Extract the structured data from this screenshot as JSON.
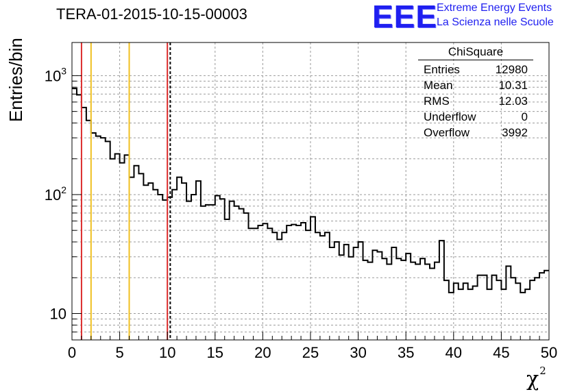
{
  "chart_data": {
    "type": "histogram",
    "title": "TERA-01-2015-10-15-00003",
    "xlabel": "χ",
    "xlabel_sup": "2",
    "ylabel": "Entries/bin",
    "xlim": [
      0,
      50
    ],
    "ylim": [
      6,
      1900
    ],
    "yscale": "log",
    "grid": true,
    "bin_width": 0.5,
    "x_ticks": [
      0,
      5,
      10,
      15,
      20,
      25,
      30,
      35,
      40,
      45,
      50
    ],
    "y_ticks": [
      {
        "value": 10,
        "base": "10",
        "exp": ""
      },
      {
        "value": 100,
        "base": "10",
        "exp": "2"
      },
      {
        "value": 1000,
        "base": "10",
        "exp": "3"
      }
    ],
    "bin_contents": [
      780,
      690,
      540,
      420,
      330,
      310,
      300,
      280,
      200,
      220,
      185,
      215,
      140,
      175,
      150,
      120,
      125,
      110,
      100,
      90,
      95,
      110,
      140,
      125,
      88,
      100,
      130,
      80,
      82,
      82,
      98,
      92,
      62,
      88,
      80,
      76,
      70,
      52,
      52,
      55,
      57,
      52,
      48,
      42,
      48,
      55,
      56,
      55,
      58,
      50,
      65,
      48,
      45,
      48,
      36,
      40,
      31,
      38,
      30,
      36,
      40,
      28,
      27,
      34,
      33,
      29,
      26,
      36,
      29,
      28,
      32,
      27,
      26,
      29,
      26,
      24,
      27,
      41,
      19,
      15,
      18,
      16,
      18,
      16,
      17,
      21,
      21,
      16,
      21,
      19,
      16,
      25,
      20,
      18,
      15,
      16,
      19,
      20,
      22,
      23
    ],
    "vertical_lines": [
      {
        "x": 1,
        "color": "#dc2a2a",
        "style": "solid"
      },
      {
        "x": 2,
        "color": "#f0c020",
        "style": "solid"
      },
      {
        "x": 6,
        "color": "#f0c020",
        "style": "solid"
      },
      {
        "x": 10,
        "color": "#dc2a2a",
        "style": "solid"
      },
      {
        "x": 10.3,
        "color": "#000000",
        "style": "dashed"
      }
    ],
    "stats": {
      "name": "ChiSquare",
      "rows": [
        {
          "label": "Entries",
          "value": "12980"
        },
        {
          "label": "Mean",
          "value": "10.31"
        },
        {
          "label": "RMS",
          "value": "12.03"
        },
        {
          "label": "Underflow",
          "value": "0"
        },
        {
          "label": "Overflow",
          "value": "3992"
        }
      ]
    }
  },
  "logo": {
    "text": "EEE",
    "line1": "Extreme Energy Events",
    "line2": "La Scienza nelle Scuole",
    "color": "#1f1ff0"
  }
}
